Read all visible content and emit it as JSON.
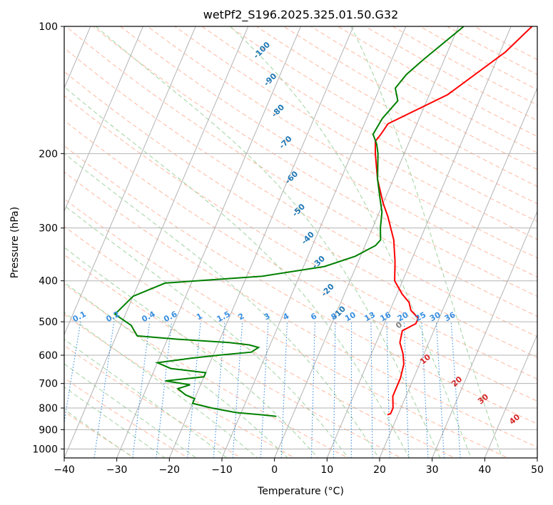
{
  "chart_data": {
    "type": "skew-t log-p",
    "title": "wetPf2_S196.2025.325.01.50.G32",
    "xlabel": "Temperature (°C)",
    "ylabel": "Pressure (hPa)",
    "xlim": [
      -40,
      50
    ],
    "ylim": [
      1050,
      100
    ],
    "y_scale": "log",
    "x_ticks": [
      "−40",
      "−30",
      "−20",
      "−10",
      "0",
      "10",
      "20",
      "30",
      "40",
      "50"
    ],
    "y_ticks": [
      "100",
      "200",
      "300",
      "400",
      "500",
      "600",
      "700",
      "800",
      "900",
      "1000"
    ],
    "grid": true,
    "series": [
      {
        "color": "#ff0000",
        "points": [
          [
            14,
            100
          ],
          [
            11,
            115
          ],
          [
            3.5,
            145
          ],
          [
            -5.5,
            170
          ],
          [
            -6,
            180
          ],
          [
            -6.5,
            187
          ],
          [
            -5.5,
            200
          ],
          [
            -3,
            230
          ],
          [
            0,
            262
          ],
          [
            2,
            282
          ],
          [
            5,
            320
          ],
          [
            7,
            360
          ],
          [
            8.5,
            400
          ],
          [
            11,
            430
          ],
          [
            13,
            450
          ],
          [
            14,
            470
          ],
          [
            16,
            490
          ],
          [
            16,
            505
          ],
          [
            14,
            525
          ],
          [
            14.5,
            560
          ],
          [
            16,
            595
          ],
          [
            17,
            630
          ],
          [
            17.5,
            680
          ],
          [
            17.5,
            750
          ],
          [
            18.5,
            800
          ],
          [
            18.5,
            825
          ],
          [
            18,
            830
          ]
        ]
      },
      {
        "color": "#008000",
        "points": [
          [
            1,
            100
          ],
          [
            -4,
            120
          ],
          [
            -6,
            130
          ],
          [
            -7,
            140
          ],
          [
            -5.5,
            150
          ],
          [
            -7,
            165
          ],
          [
            -7.5,
            180
          ],
          [
            -6,
            190
          ],
          [
            -5,
            200
          ],
          [
            -3,
            230
          ],
          [
            -1,
            255
          ],
          [
            0.5,
            275
          ],
          [
            1.5,
            300
          ],
          [
            2.5,
            320
          ],
          [
            2,
            330
          ],
          [
            -1,
            350
          ],
          [
            -6,
            370
          ],
          [
            -17,
            390
          ],
          [
            -35,
            405
          ],
          [
            -40,
            435
          ],
          [
            -42,
            480
          ],
          [
            -38,
            510
          ],
          [
            -37,
            525
          ],
          [
            -36,
            540
          ],
          [
            -28,
            550
          ],
          [
            -18,
            560
          ],
          [
            -14,
            567
          ],
          [
            -12,
            575
          ],
          [
            -13,
            590
          ],
          [
            -19,
            600
          ],
          [
            -24,
            610
          ],
          [
            -30,
            625
          ],
          [
            -27,
            645
          ],
          [
            -20,
            660
          ],
          [
            -20,
            675
          ],
          [
            -27,
            690
          ],
          [
            -22,
            705
          ],
          [
            -24,
            720
          ],
          [
            -22,
            745
          ],
          [
            -20,
            760
          ],
          [
            -20,
            780
          ],
          [
            -16,
            800
          ],
          [
            -11,
            820
          ],
          [
            -6,
            830
          ],
          [
            -3,
            837
          ]
        ]
      }
    ],
    "dry_adiabat_labels": [
      "-100",
      "-90",
      "-80",
      "-70",
      "-60",
      "-50",
      "-40",
      "-30",
      "-20",
      "-10"
    ],
    "mixing_ratio_labels": [
      "0.1",
      "0.2",
      "0.4",
      "0.6",
      "1",
      "1.5",
      "2",
      "3",
      "4",
      "6",
      "8",
      "10",
      "13",
      "16",
      "20",
      "25",
      "30",
      "36"
    ],
    "moist_adiabat_labels": [
      "0",
      "10",
      "20",
      "30",
      "40"
    ],
    "colors": {
      "isotherm": "#b3b3b3",
      "isobar": "#b3b3b3",
      "dry_adiabat": "#ffb8a0",
      "moist_adiabat": "#9fd39f",
      "mixing_ratio": "#3a8fe0",
      "label_blue": "#1f77b4",
      "label_red": "#d62728",
      "label_gray": "#808080",
      "temperature": "#ff0000",
      "dewpoint": "#008000"
    }
  }
}
